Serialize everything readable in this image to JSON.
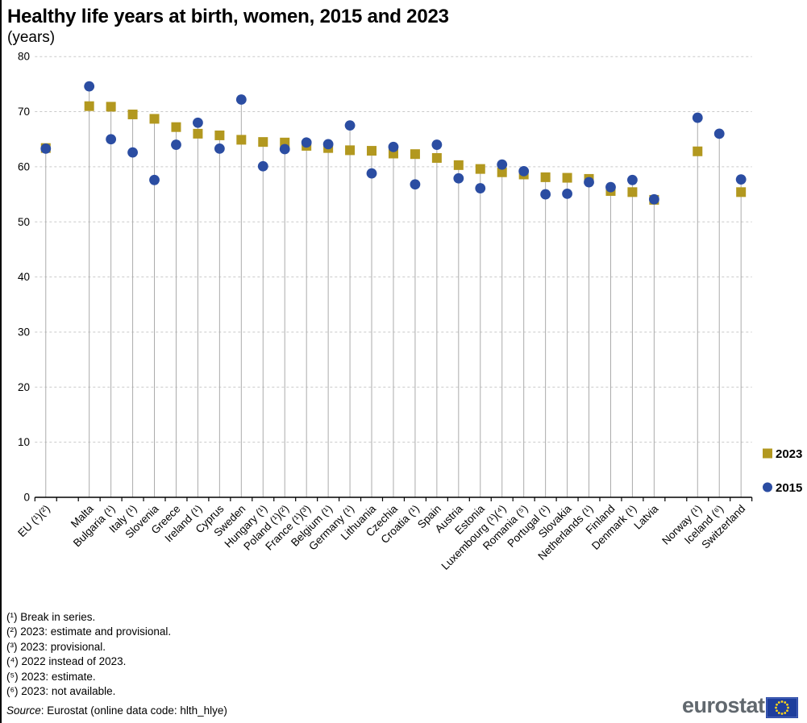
{
  "title": "Healthy life years at birth, women, 2015 and 2023",
  "subtitle": "(years)",
  "chart_data": {
    "type": "scatter",
    "title": "Healthy life years at birth, women, 2015 and 2023",
    "ylabel": "years",
    "ylim": [
      0,
      80
    ],
    "yticks": [
      0,
      10,
      20,
      30,
      40,
      50,
      60,
      70,
      80
    ],
    "grid": "horizontal-dashed",
    "legend_position": "right",
    "gap_after_indices": [
      0,
      27
    ],
    "categories": [
      "EU (¹)(²)",
      "Malta",
      "Bulgaria (¹)",
      "Italy (¹)",
      "Slovenia",
      "Greece",
      "Ireland (¹)",
      "Cyprus",
      "Sweden",
      "Hungary (¹)",
      "Poland (¹)(²)",
      "France (¹)(³)",
      "Belgium (¹)",
      "Germany (¹)",
      "Lithuania",
      "Czechia",
      "Croatia (¹)",
      "Spain",
      "Austria",
      "Estonia",
      "Luxembourg (¹)(⁴)",
      "Romania (⁵)",
      "Portugal (¹)",
      "Slovakia",
      "Netherlands (¹)",
      "Finland",
      "Denmark (¹)",
      "Latvia",
      "Norway (¹)",
      "Iceland (⁶)",
      "Switzerland"
    ],
    "series": [
      {
        "name": "2023",
        "marker": "square",
        "color": "#B2981F",
        "values": [
          63.4,
          71.0,
          70.9,
          69.5,
          68.7,
          67.2,
          66.0,
          65.7,
          64.9,
          64.5,
          64.4,
          63.8,
          63.4,
          63.0,
          62.9,
          62.4,
          62.3,
          61.6,
          60.3,
          59.6,
          59.0,
          58.6,
          58.1,
          58.0,
          57.8,
          55.6,
          55.4,
          54.0,
          62.8,
          null,
          55.4
        ]
      },
      {
        "name": "2015",
        "marker": "circle",
        "color": "#2B4DA2",
        "values": [
          63.3,
          74.6,
          65.0,
          62.6,
          57.6,
          64.0,
          68.0,
          63.3,
          72.2,
          60.1,
          63.2,
          64.4,
          64.1,
          67.5,
          58.8,
          63.6,
          56.8,
          64.0,
          57.9,
          56.1,
          60.4,
          59.2,
          55.0,
          55.1,
          57.2,
          56.3,
          57.6,
          54.1,
          68.9,
          66.0,
          57.7
        ]
      }
    ]
  },
  "footnotes": [
    "(¹) Break in series.",
    "(²) 2023: estimate and provisional.",
    "(³) 2023: provisional.",
    "(⁴) 2022 instead of 2023.",
    "(⁵) 2023: estimate.",
    "(⁶) 2023: not available."
  ],
  "source": {
    "label": "Source",
    "text": ": Eurostat (online data code: hlth_hlye)"
  },
  "logo": {
    "text": "eurostat"
  }
}
